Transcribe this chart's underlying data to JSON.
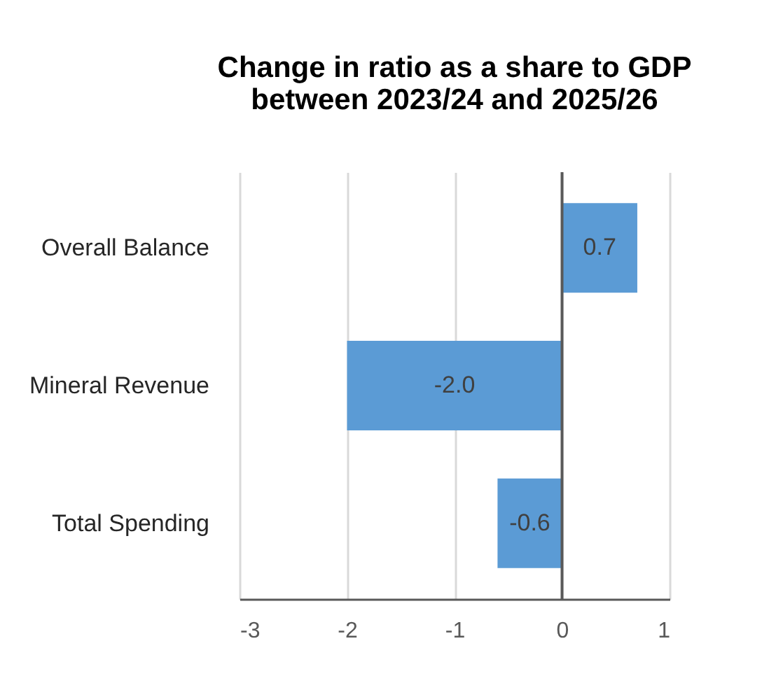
{
  "chart_data": {
    "type": "bar",
    "orientation": "horizontal",
    "title": "Change in ratio as a share to GDP\nbetween 2023/24 and 2025/26",
    "categories": [
      "Overall Balance",
      "Mineral Revenue",
      "Total Spending"
    ],
    "values": [
      0.7,
      -2.0,
      -0.6
    ],
    "color": "#5b9bd5",
    "value_labels": [
      "0.7",
      "-2.0",
      "-0.6"
    ],
    "xlim": [
      -3,
      1
    ],
    "xticks": [
      -3,
      -2,
      -1,
      0,
      1
    ],
    "grid": "x",
    "ref_lines": [
      {
        "axis": "x",
        "value": 0,
        "color": "#595959"
      }
    ]
  }
}
